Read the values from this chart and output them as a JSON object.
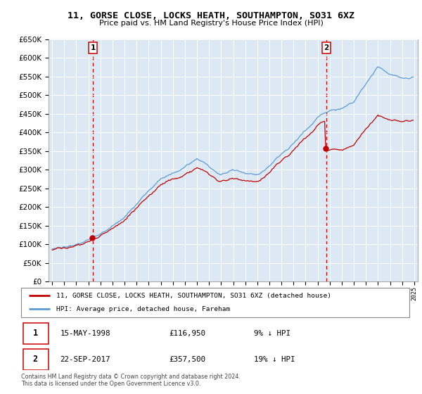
{
  "title": "11, GORSE CLOSE, LOCKS HEATH, SOUTHAMPTON, SO31 6XZ",
  "subtitle": "Price paid vs. HM Land Registry's House Price Index (HPI)",
  "legend_line1": "11, GORSE CLOSE, LOCKS HEATH, SOUTHAMPTON, SO31 6XZ (detached house)",
  "legend_line2": "HPI: Average price, detached house, Fareham",
  "transaction1_label": "1",
  "transaction1_date": "15-MAY-1998",
  "transaction1_price": "£116,950",
  "transaction1_note": "9% ↓ HPI",
  "transaction2_label": "2",
  "transaction2_date": "22-SEP-2017",
  "transaction2_price": "£357,500",
  "transaction2_note": "19% ↓ HPI",
  "footer": "Contains HM Land Registry data © Crown copyright and database right 2024.\nThis data is licensed under the Open Government Licence v3.0.",
  "sale1_year": 1998.37,
  "sale2_year": 2017.72,
  "sale1_price": 116950,
  "sale2_price": 357500,
  "hpi_color": "#5b9bd5",
  "price_color": "#c00000",
  "dashed_color": "#cc0000",
  "ylim_min": 0,
  "ylim_max": 650000,
  "xlim_min": 1994.7,
  "xlim_max": 2025.3,
  "plot_bg_color": "#dce9f5",
  "grid_color": "#ffffff",
  "background_color": "#ffffff"
}
